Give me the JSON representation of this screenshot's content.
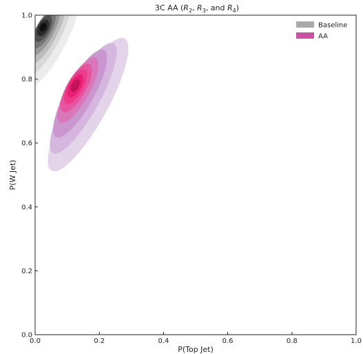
{
  "chart_data": {
    "type": "kde-contour",
    "title_parts": {
      "prefix": "3C AA (",
      "r2": "R",
      "r2_sub": "2",
      "sep1": ", ",
      "r3": "R",
      "r3_sub": "3",
      "sep2": ", and ",
      "r4": "R",
      "r4_sub": "4",
      "suffix": ")"
    },
    "xlabel": "P(Top Jet)",
    "ylabel": "P(W Jet)",
    "xlim": [
      0,
      1
    ],
    "ylim": [
      0,
      1
    ],
    "xticks": [
      0.0,
      0.2,
      0.4,
      0.6,
      0.8,
      1.0
    ],
    "yticks": [
      0.0,
      0.2,
      0.4,
      0.6,
      0.8,
      1.0
    ],
    "xtick_labels": [
      "0.0",
      "0.2",
      "0.4",
      "0.6",
      "0.8",
      "1.0"
    ],
    "ytick_labels": [
      "0.0",
      "0.2",
      "0.4",
      "0.6",
      "0.8",
      "1.0"
    ],
    "legend_position": "top-right",
    "series": [
      {
        "name": "Baseline",
        "legend_color": "#a9a9a9",
        "levels": [
          {
            "color": "#ececec",
            "center": [
              0.05,
              0.92
            ],
            "semi_major": 0.165,
            "semi_minor": 0.045,
            "angle_deg": -62
          },
          {
            "color": "#d8d8d8",
            "center": [
              0.04,
              0.935
            ],
            "semi_major": 0.14,
            "semi_minor": 0.038,
            "angle_deg": -62
          },
          {
            "color": "#bcbcbc",
            "center": [
              0.035,
              0.945
            ],
            "semi_major": 0.11,
            "semi_minor": 0.033,
            "angle_deg": -62
          },
          {
            "color": "#9a9a9a",
            "center": [
              0.03,
              0.95
            ],
            "semi_major": 0.085,
            "semi_minor": 0.028,
            "angle_deg": -62
          },
          {
            "color": "#767676",
            "center": [
              0.027,
              0.955
            ],
            "semi_major": 0.065,
            "semi_minor": 0.024,
            "angle_deg": -62
          },
          {
            "color": "#4f4f4f",
            "center": [
              0.025,
              0.958
            ],
            "semi_major": 0.045,
            "semi_minor": 0.02,
            "angle_deg": -62
          },
          {
            "color": "#2a2a2a",
            "center": [
              0.025,
              0.96
            ],
            "semi_major": 0.028,
            "semi_minor": 0.015,
            "angle_deg": -62
          },
          {
            "color": "#0d0d0d",
            "center": [
              0.025,
              0.962
            ],
            "semi_major": 0.014,
            "semi_minor": 0.009,
            "angle_deg": -62
          }
        ]
      },
      {
        "name": "AA",
        "legend_color": "#cc4fa6",
        "levels": [
          {
            "color": "#e4d4ea",
            "center": [
              0.165,
              0.72
            ],
            "semi_major": 0.235,
            "semi_minor": 0.06,
            "angle_deg": -61
          },
          {
            "color": "#d4b6de",
            "center": [
              0.15,
              0.74
            ],
            "semi_major": 0.195,
            "semi_minor": 0.05,
            "angle_deg": -61
          },
          {
            "color": "#c996d0",
            "center": [
              0.14,
              0.755
            ],
            "semi_major": 0.155,
            "semi_minor": 0.043,
            "angle_deg": -61
          },
          {
            "color": "#d978b8",
            "center": [
              0.133,
              0.765
            ],
            "semi_major": 0.115,
            "semi_minor": 0.036,
            "angle_deg": -61
          },
          {
            "color": "#e6559f",
            "center": [
              0.128,
              0.772
            ],
            "semi_major": 0.085,
            "semi_minor": 0.03,
            "angle_deg": -61
          },
          {
            "color": "#ee3a8a",
            "center": [
              0.126,
              0.776
            ],
            "semi_major": 0.06,
            "semi_minor": 0.024,
            "angle_deg": -61
          },
          {
            "color": "#e81f74",
            "center": [
              0.125,
              0.778
            ],
            "semi_major": 0.04,
            "semi_minor": 0.018,
            "angle_deg": -61
          },
          {
            "color": "#c2125a",
            "center": [
              0.125,
              0.78
            ],
            "semi_major": 0.022,
            "semi_minor": 0.011,
            "angle_deg": -61
          }
        ]
      }
    ]
  }
}
